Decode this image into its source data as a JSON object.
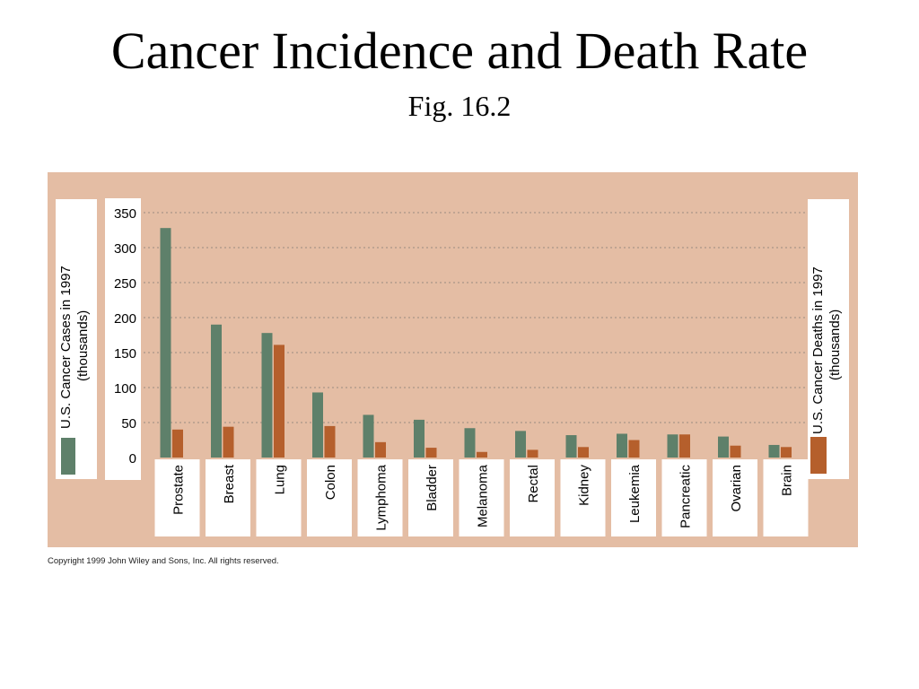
{
  "page": {
    "title": "Cancer Incidence and Death Rate",
    "subtitle": "Fig. 16.2",
    "copyright": "Copyright 1999 John Wiley and Sons, Inc. All rights reserved."
  },
  "colors": {
    "panel": "#e4bda4",
    "cases": "#5e806a",
    "deaths": "#b55f2c",
    "grid": "#9a8a80"
  },
  "chart_data": {
    "type": "bar",
    "categories": [
      "Prostate",
      "Breast",
      "Lung",
      "Colon",
      "Lymphoma",
      "Bladder",
      "Melanoma",
      "Rectal",
      "Kidney",
      "Leukemia",
      "Pancreatic",
      "Ovarian",
      "Brain"
    ],
    "series": [
      {
        "name": "U.S. Cancer Cases in 1997 (thousands)",
        "values": [
          328,
          190,
          178,
          93,
          61,
          54,
          42,
          38,
          32,
          34,
          33,
          30,
          18
        ]
      },
      {
        "name": "U.S. Cancer Deaths in 1997 (thousands)",
        "values": [
          40,
          44,
          161,
          45,
          22,
          14,
          8,
          11,
          15,
          25,
          33,
          17,
          15
        ]
      }
    ],
    "yticks": [
      0,
      50,
      100,
      150,
      200,
      250,
      300,
      350
    ],
    "ylim": [
      0,
      350
    ],
    "ylabel_left": [
      "U.S. Cancer Cases in 1997",
      "(thousands)"
    ],
    "ylabel_right": [
      "U.S. Cancer Deaths in 1997",
      "(thousands)"
    ],
    "grid": true,
    "legend": "left and right side panels"
  }
}
